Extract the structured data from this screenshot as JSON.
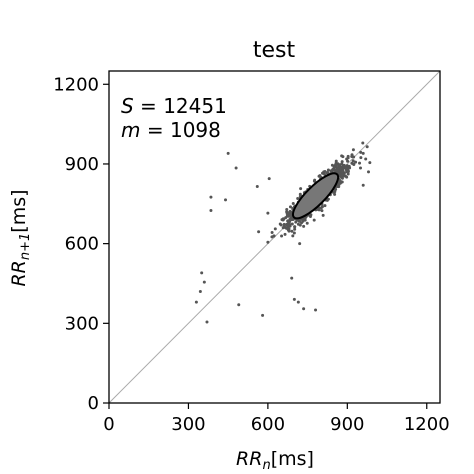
{
  "chart_data": {
    "type": "scatter",
    "title": "test",
    "xlabel": {
      "base": "RR",
      "sub": "n",
      "unit": "[ms]"
    },
    "ylabel": {
      "base": "RR",
      "sub": "n+1",
      "unit": "[ms]"
    },
    "xlim": [
      0,
      1250
    ],
    "ylim": [
      0,
      1250
    ],
    "xticks": [
      0,
      300,
      600,
      900,
      1200
    ],
    "yticks": [
      0,
      300,
      600,
      900,
      1200
    ],
    "grid": false,
    "identity_line": true,
    "annotations": [
      {
        "var": "S",
        "value": "12451"
      },
      {
        "var": "m",
        "value": "1098"
      }
    ],
    "ellipse": {
      "center": [
        780,
        780
      ],
      "semi_major": 115,
      "semi_minor": 35,
      "angle_deg": 45
    },
    "cluster": {
      "center": [
        790,
        790
      ],
      "count": 1100,
      "spread_along": 80,
      "spread_across": 18,
      "range": [
        610,
        980
      ]
    },
    "outliers": [
      [
        450,
        940
      ],
      [
        480,
        885
      ],
      [
        385,
        775
      ],
      [
        440,
        765
      ],
      [
        385,
        725
      ],
      [
        560,
        815
      ],
      [
        605,
        845
      ],
      [
        600,
        715
      ],
      [
        565,
        645
      ],
      [
        600,
        605
      ],
      [
        650,
        670
      ],
      [
        680,
        655
      ],
      [
        700,
        640
      ],
      [
        735,
        665
      ],
      [
        720,
        600
      ],
      [
        960,
        820
      ],
      [
        980,
        870
      ],
      [
        985,
        905
      ],
      [
        960,
        940
      ],
      [
        975,
        965
      ],
      [
        350,
        490
      ],
      [
        360,
        455
      ],
      [
        345,
        420
      ],
      [
        330,
        380
      ],
      [
        370,
        305
      ],
      [
        490,
        370
      ],
      [
        580,
        330
      ],
      [
        715,
        380
      ],
      [
        735,
        355
      ],
      [
        780,
        350
      ],
      [
        700,
        390
      ],
      [
        690,
        470
      ]
    ],
    "colors": {
      "points": "#555555",
      "ellipse_fill": "#777777",
      "ellipse_edge": "#000000",
      "identity": "#aaaaaa"
    }
  }
}
